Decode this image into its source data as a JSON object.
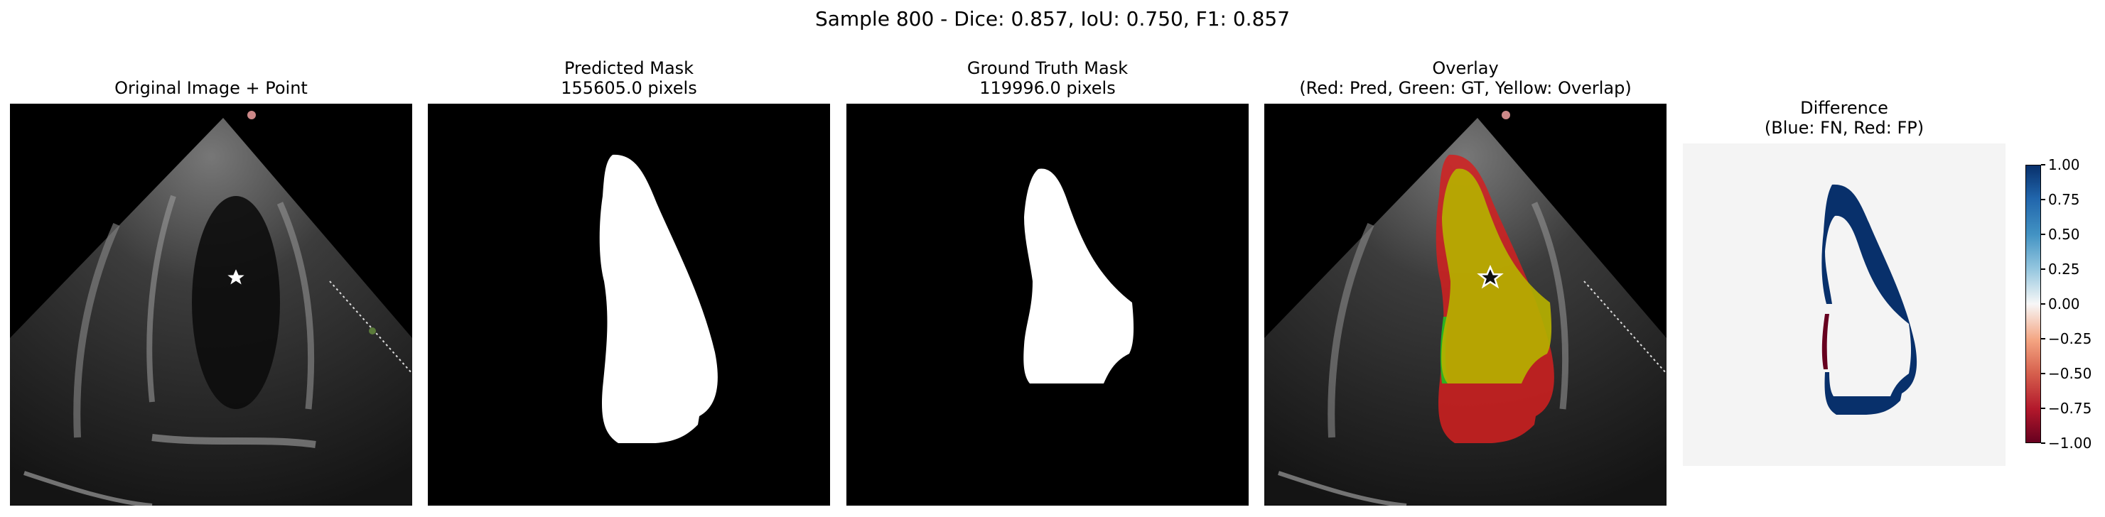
{
  "suptitle": "Sample 800 - Dice: 0.857, IoU: 0.750, F1: 0.857",
  "panels": [
    {
      "title": "Original Image + Point"
    },
    {
      "title": "Predicted Mask\n155605.0 pixels"
    },
    {
      "title": "Ground Truth Mask\n119996.0 pixels"
    },
    {
      "title": "Overlay\n(Red: Pred, Green: GT, Yellow: Overlap)"
    },
    {
      "title": "Difference\n(Blue: FN, Red: FP)"
    }
  ],
  "colorbar": {
    "ticks": [
      "1.00",
      "0.75",
      "0.50",
      "0.25",
      "0.00",
      "−0.25",
      "−0.50",
      "−0.75",
      "−1.00"
    ],
    "max_color": "#08306b",
    "zero_color": "#f7f7f7",
    "min_color": "#67001f"
  },
  "colors": {
    "pred": "#ff0000",
    "gt": "#00ff00",
    "overlap": "#b5b000",
    "background": "#f4f4f4"
  },
  "icons": [
    "star-icon"
  ]
}
